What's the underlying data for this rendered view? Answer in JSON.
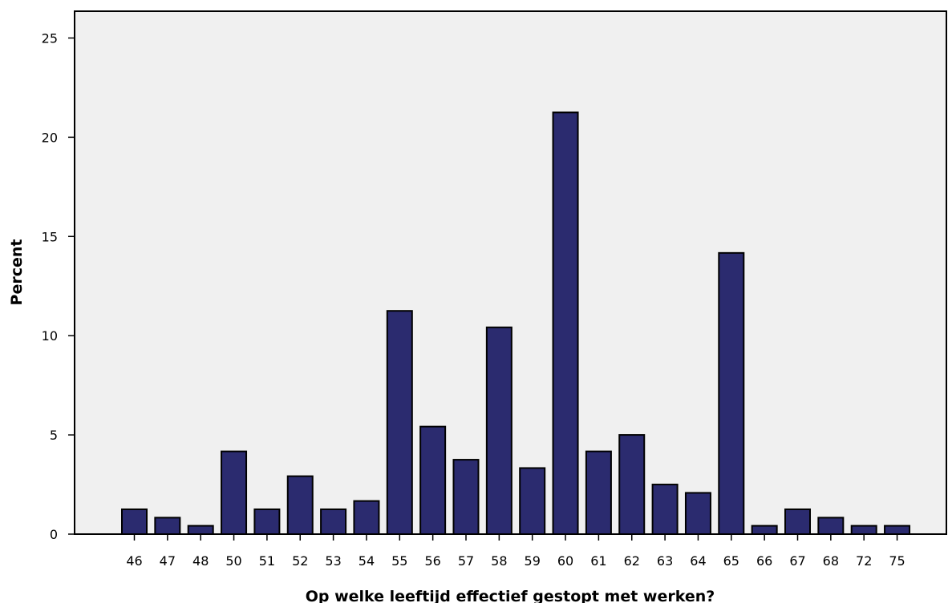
{
  "chart_data": {
    "type": "bar",
    "xlabel": "Op welke leeftijd effectief gestopt met werken?",
    "ylabel": "Percent",
    "categories": [
      "46",
      "47",
      "48",
      "50",
      "51",
      "52",
      "53",
      "54",
      "55",
      "56",
      "57",
      "58",
      "59",
      "60",
      "61",
      "62",
      "63",
      "64",
      "65",
      "66",
      "67",
      "68",
      "72",
      "75"
    ],
    "values": [
      1.25,
      0.83,
      0.42,
      4.17,
      1.25,
      2.92,
      1.25,
      1.67,
      11.25,
      5.42,
      3.75,
      10.42,
      3.33,
      21.25,
      4.17,
      5.0,
      2.5,
      2.08,
      14.17,
      0.42,
      1.25,
      0.83,
      0.42,
      0.42
    ],
    "ylim": [
      0,
      26.35
    ],
    "yticks": [
      0,
      5,
      10,
      15,
      20,
      25
    ],
    "grid": false,
    "colors": {
      "bar_fill": "#2b2b6f",
      "bar_stroke": "#000000",
      "plot_background": "#f0f0f0"
    }
  }
}
